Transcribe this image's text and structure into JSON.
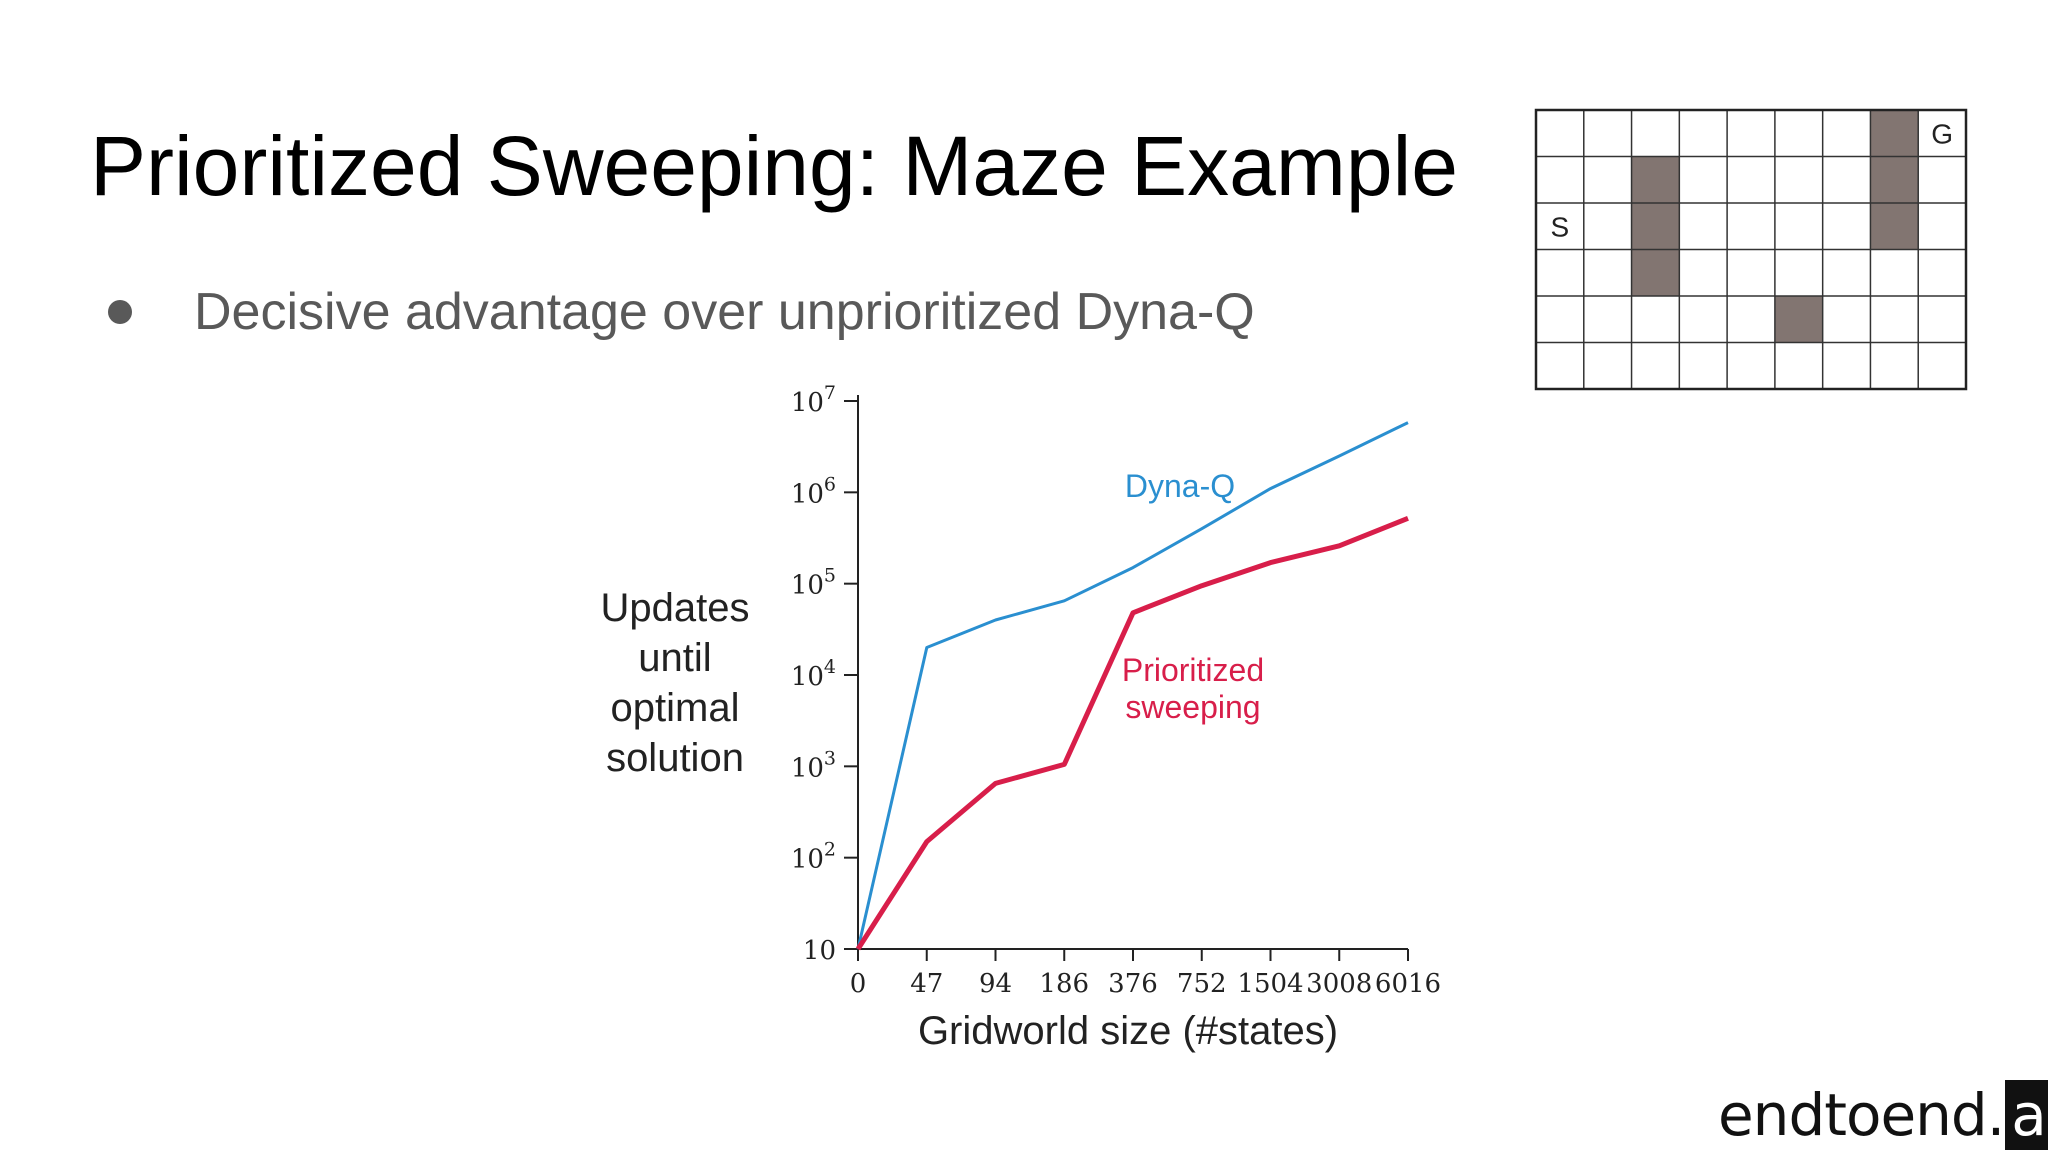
{
  "slide": {
    "title": "Prioritized Sweeping: Maze Example",
    "bullets": [
      "Decisive advantage over unprioritized Dyna-Q"
    ]
  },
  "maze": {
    "cols": 9,
    "rows": 6,
    "start_label": "S",
    "goal_label": "G",
    "start_cell": [
      0,
      2
    ],
    "goal_cell": [
      8,
      0
    ],
    "walls": [
      [
        2,
        1
      ],
      [
        2,
        2
      ],
      [
        2,
        3
      ],
      [
        5,
        4
      ],
      [
        7,
        0
      ],
      [
        7,
        1
      ],
      [
        7,
        2
      ]
    ],
    "wall_color": "#827571",
    "line_color": "#333333"
  },
  "chart_data": {
    "type": "line",
    "x_scale": "log2",
    "y_scale": "log10",
    "xlabel": "Gridworld size (#states)",
    "ylabel": "Updates until optimal solution",
    "x_ticks": [
      0,
      47,
      94,
      186,
      376,
      752,
      1504,
      3008,
      6016
    ],
    "y_ticks": [
      10,
      100,
      1000,
      10000,
      100000,
      1000000,
      10000000
    ],
    "y_tick_labels": [
      {
        "base": "10",
        "exp": ""
      },
      {
        "base": "10",
        "exp": "2"
      },
      {
        "base": "10",
        "exp": "3"
      },
      {
        "base": "10",
        "exp": "4"
      },
      {
        "base": "10",
        "exp": "5"
      },
      {
        "base": "10",
        "exp": "6"
      },
      {
        "base": "10",
        "exp": "7"
      }
    ],
    "series": [
      {
        "name": "Dyna-Q",
        "color": "#2a8fd0",
        "x": [
          0,
          47,
          94,
          186,
          376,
          752,
          1504,
          3008,
          6016
        ],
        "y": [
          10,
          20000,
          40000,
          65000,
          150000,
          400000,
          1100000,
          2500000,
          5800000
        ]
      },
      {
        "name": "Prioritized sweeping",
        "color": "#d81e4a",
        "x": [
          0,
          47,
          94,
          186,
          376,
          752,
          1504,
          3008,
          6016
        ],
        "y": [
          10,
          150,
          650,
          1050,
          48000,
          95000,
          170000,
          260000,
          520000
        ]
      }
    ],
    "series_labels": [
      {
        "lines": [
          "Dyna-Q"
        ],
        "color": "#2a8fd0"
      },
      {
        "lines": [
          "Prioritized",
          "sweeping"
        ],
        "color": "#d81e4a"
      }
    ],
    "ylabel_lines": [
      "Updates",
      "until",
      "optimal",
      "solution"
    ]
  },
  "logo": {
    "text": "endtoend",
    "dot": ".",
    "suffix": "ai"
  }
}
